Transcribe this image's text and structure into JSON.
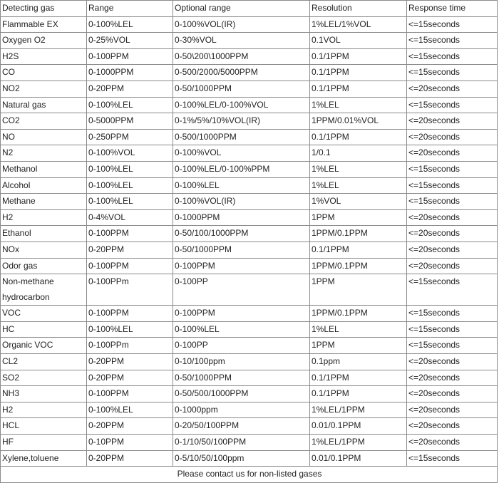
{
  "table": {
    "headers": [
      "Detecting gas",
      "Range",
      "Optional range",
      "Resolution",
      "Response time"
    ],
    "rows": [
      [
        "Flammable EX",
        "0-100%LEL",
        "0-100%VOL(IR)",
        "1%LEL/1%VOL",
        "<=15seconds"
      ],
      [
        "Oxygen O2",
        "0-25%VOL",
        "0-30%VOL",
        "0.1VOL",
        "<=15seconds"
      ],
      [
        "H2S",
        "0-100PPM",
        "0-50\\200\\1000PPM",
        "0.1/1PPM",
        "<=15seconds"
      ],
      [
        "CO",
        "0-1000PPM",
        "0-500/2000/5000PPM",
        "0.1/1PPM",
        "<=15seconds"
      ],
      [
        "NO2",
        "0-20PPM",
        "0-50/1000PPM",
        "0.1/1PPM",
        "<=20seconds"
      ],
      [
        "Natural gas",
        "0-100%LEL",
        "0-100%LEL/0-100%VOL",
        "1%LEL",
        "<=15seconds"
      ],
      [
        "CO2",
        "0-5000PPM",
        "0-1%/5%/10%VOL(IR)",
        "1PPM/0.01%VOL",
        "<=20seconds"
      ],
      [
        "NO",
        "0-250PPM",
        "0-500/1000PPM",
        "0.1/1PPM",
        "<=20seconds"
      ],
      [
        "N2",
        "0-100%VOL",
        "0-100%VOL",
        "1/0.1",
        "<=20seconds"
      ],
      [
        "Methanol",
        "0-100%LEL",
        "0-100%LEL/0-100%PPM",
        "1%LEL",
        "<=15seconds"
      ],
      [
        "Alcohol",
        "0-100%LEL",
        "0-100%LEL",
        "1%LEL",
        "<=15seconds"
      ],
      [
        "Methane",
        "0-100%LEL",
        "0-100%VOL(IR)",
        "1%VOL",
        "<=15seconds"
      ],
      [
        "H2",
        "0-4%VOL",
        "0-1000PPM",
        "1PPM",
        "<=20seconds"
      ],
      [
        "Ethanol",
        "0-100PPM",
        "0-50/100/1000PPM",
        "1PPM/0.1PPM",
        "<=20seconds"
      ],
      [
        "NOx",
        "0-20PPM",
        "0-50/1000PPM",
        "0.1/1PPM",
        "<=20seconds"
      ],
      [
        "Odor gas",
        "0-100PPM",
        "0-100PPM",
        "1PPM/0.1PPM",
        "<=20seconds"
      ],
      [
        "Non-methane hydrocarbon",
        "0-100PPm",
        "0-100PP",
        "1PPM",
        "<=15seconds"
      ],
      [
        "VOC",
        "0-100PPM",
        "0-100PPM",
        "1PPM/0.1PPM",
        "<=15seconds"
      ],
      [
        "HC",
        "0-100%LEL",
        "0-100%LEL",
        "1%LEL",
        "<=15seconds"
      ],
      [
        "Organic VOC",
        "0-100PPm",
        "0-100PP",
        "1PPM",
        "<=15seconds"
      ],
      [
        "CL2",
        "0-20PPM",
        "0-10/100ppm",
        "0.1ppm",
        "<=20seconds"
      ],
      [
        "SO2",
        "0-20PPM",
        "0-50/1000PPM",
        "0.1/1PPM",
        "<=20seconds"
      ],
      [
        "NH3",
        "0-100PPM",
        "0-50/500/1000PPM",
        "0.1/1PPM",
        "<=20seconds"
      ],
      [
        "H2",
        "0-100%LEL",
        "0-1000ppm",
        "1%LEL/1PPM",
        "<=20seconds"
      ],
      [
        "HCL",
        "0-20PPM",
        "0-20/50/100PPM",
        "0.01/0.1PPM",
        "<=20seconds"
      ],
      [
        "HF",
        "0-10PPM",
        "0-1/10/50/100PPM",
        "1%LEL/1PPM",
        "<=20seconds"
      ],
      [
        "Xylene,toluene",
        "0-20PPM",
        "0-5/10/50/100ppm",
        "0.01/0.1PPM",
        "<=15seconds"
      ]
    ],
    "footer": "Please contact us for non-listed gases"
  }
}
